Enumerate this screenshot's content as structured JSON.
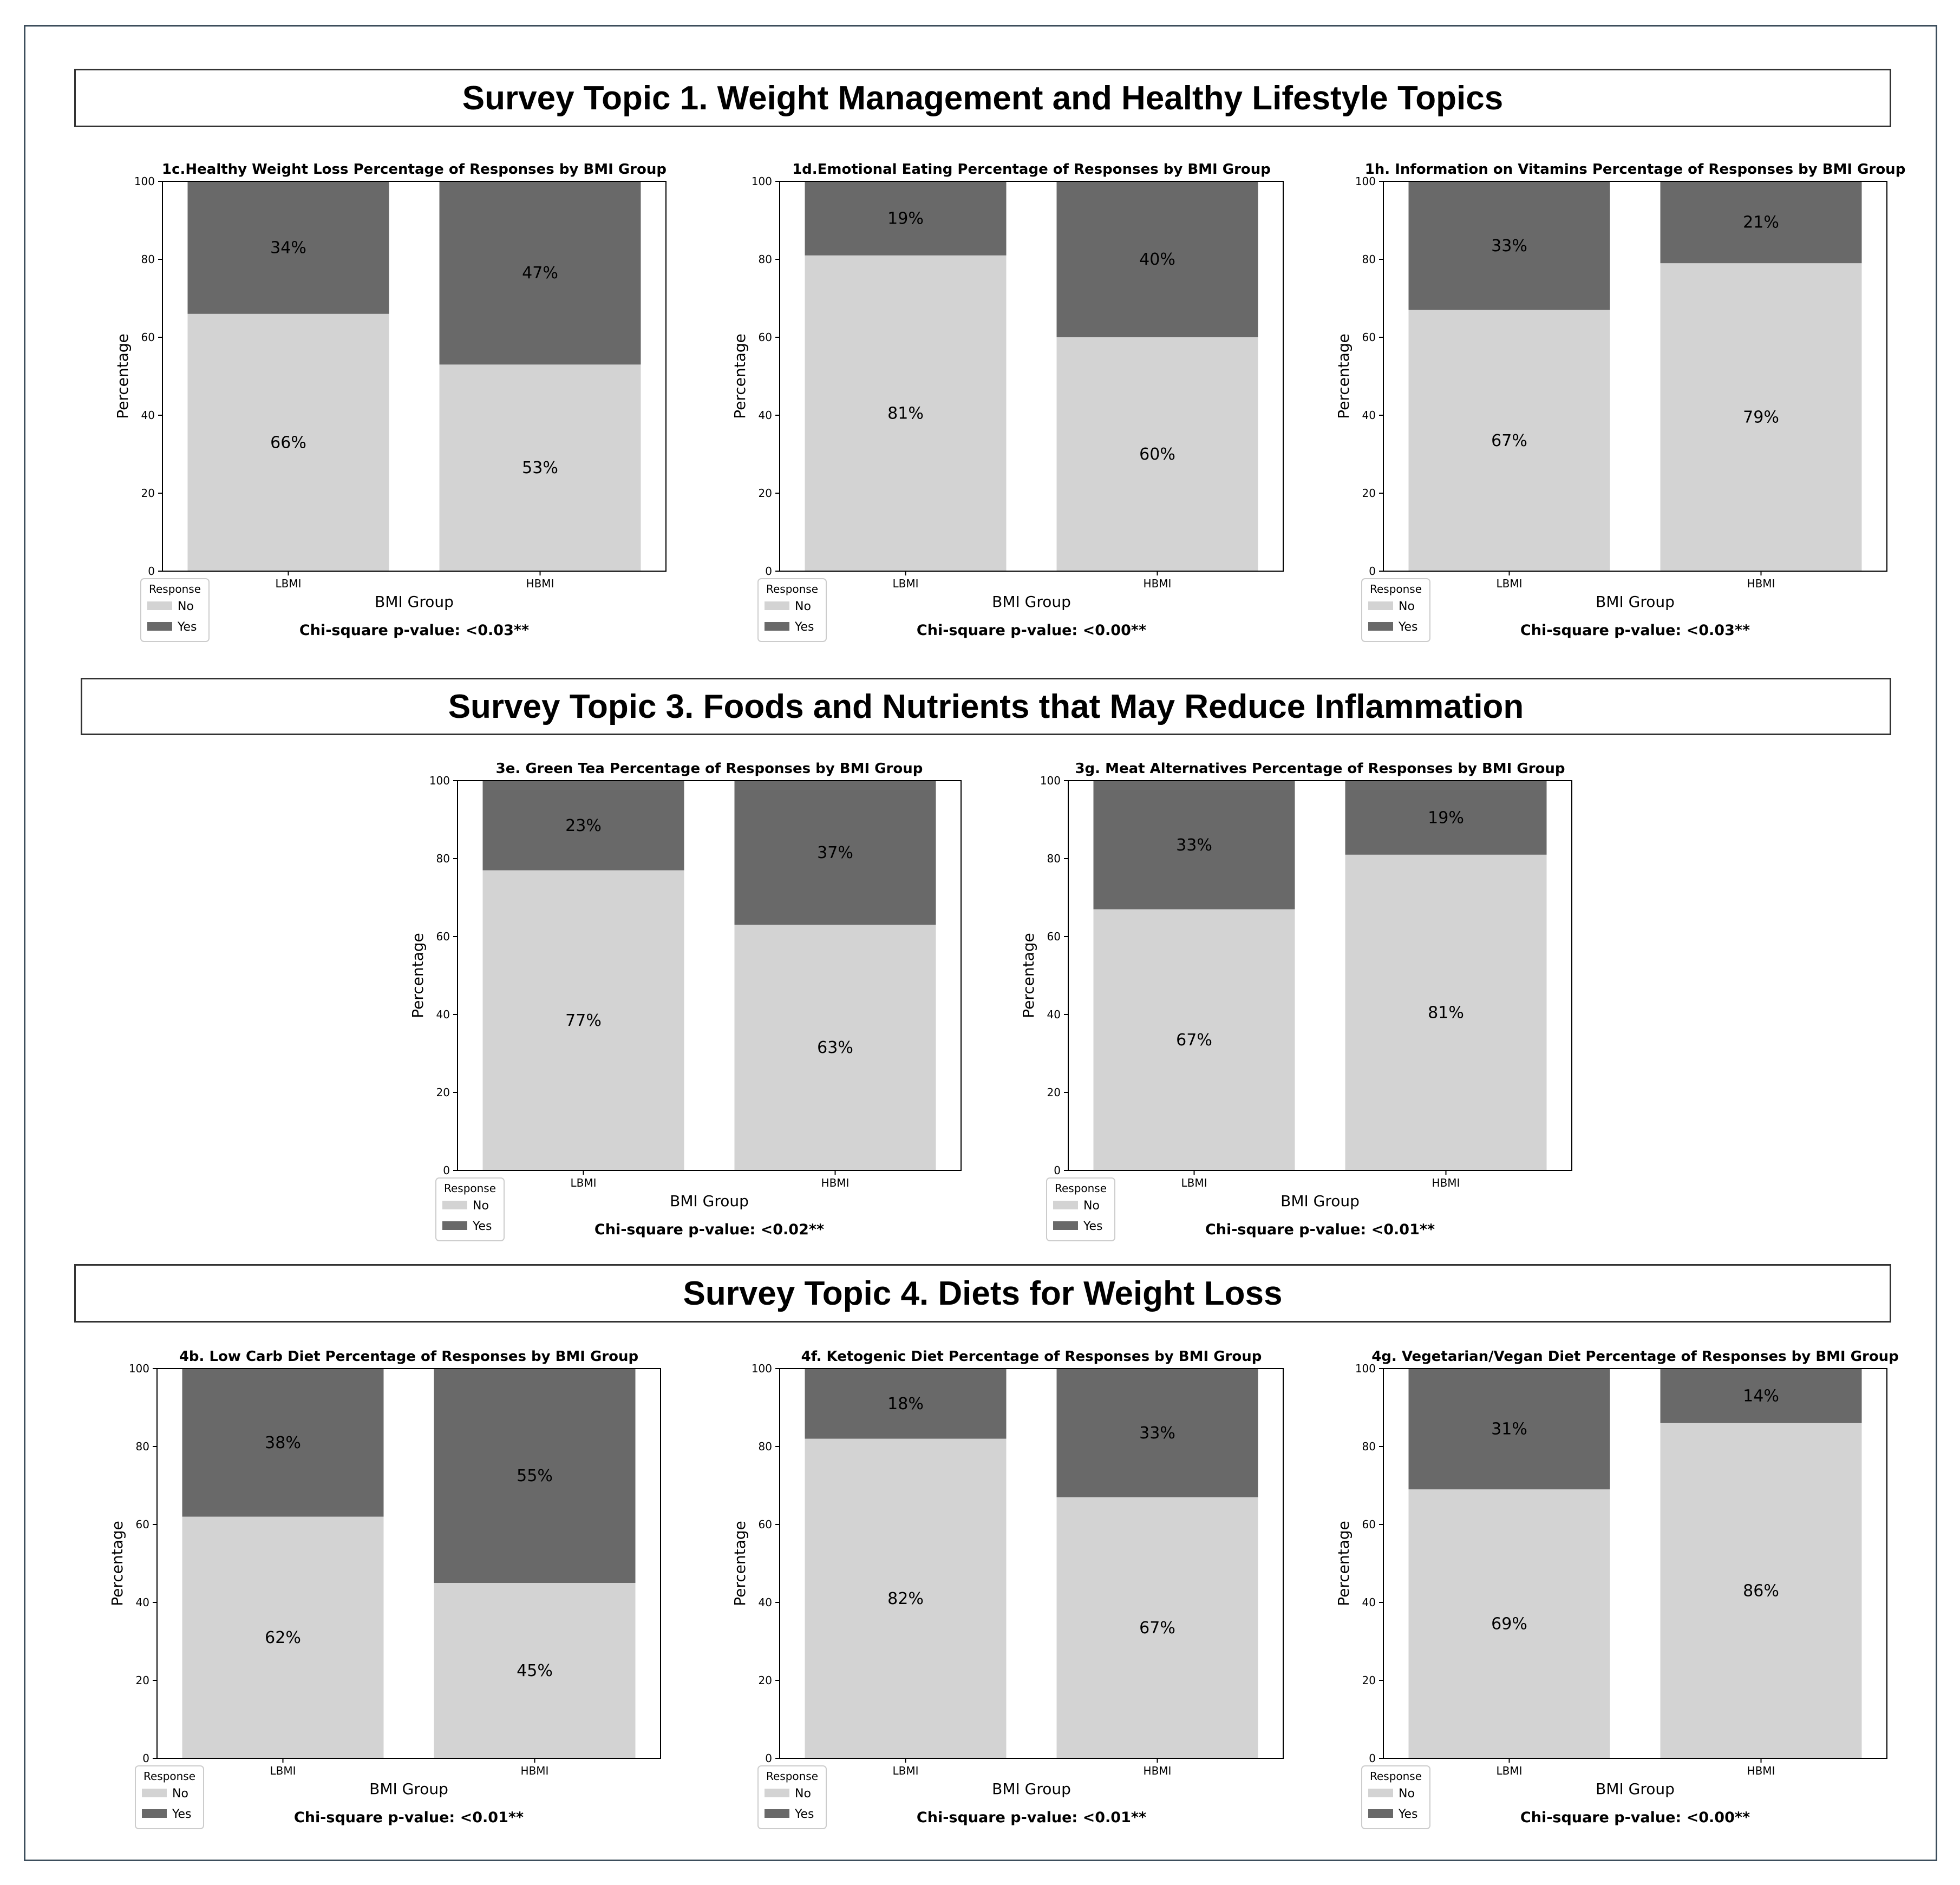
{
  "sections": [
    {
      "title": "Survey Topic 1. Weight Management and Healthy Lifestyle Topics"
    },
    {
      "title": "Survey Topic 3. Foods and Nutrients that May Reduce Inflammation"
    },
    {
      "title": "Survey Topic 4. Diets for Weight Loss"
    }
  ],
  "colors": {
    "no": "#d3d3d3",
    "yes": "#696969"
  },
  "chart_data": [
    {
      "type": "bar",
      "stacked": true,
      "title": "1c.Healthy Weight Loss Percentage of Responses by BMI Group",
      "categories": [
        "LBMI",
        "HBMI"
      ],
      "series": [
        {
          "name": "No",
          "values": [
            66,
            53
          ]
        },
        {
          "name": "Yes",
          "values": [
            34,
            47
          ]
        }
      ],
      "labels": [
        [
          "66%",
          "34%"
        ],
        [
          "53%",
          "47%"
        ]
      ],
      "xlabel": "BMI Group",
      "ylabel": "Percentage",
      "ylim": [
        0,
        100
      ],
      "yticks": [
        "0",
        "20",
        "40",
        "60",
        "80",
        "100"
      ],
      "legend": {
        "title": "Response",
        "items": [
          "No",
          "Yes"
        ],
        "position": "below-left"
      },
      "note": "Chi-square p-value: <0.03**"
    },
    {
      "type": "bar",
      "stacked": true,
      "title": "1d.Emotional Eating Percentage of Responses by BMI Group",
      "categories": [
        "LBMI",
        "HBMI"
      ],
      "series": [
        {
          "name": "No",
          "values": [
            81,
            60
          ]
        },
        {
          "name": "Yes",
          "values": [
            19,
            40
          ]
        }
      ],
      "labels": [
        [
          "81%",
          "19%"
        ],
        [
          "60%",
          "40%"
        ]
      ],
      "xlabel": "BMI Group",
      "ylabel": "Percentage",
      "ylim": [
        0,
        100
      ],
      "yticks": [
        "0",
        "20",
        "40",
        "60",
        "80",
        "100"
      ],
      "legend": {
        "title": "Response",
        "items": [
          "No",
          "Yes"
        ],
        "position": "below-left"
      },
      "note": "Chi-square p-value: <0.00**"
    },
    {
      "type": "bar",
      "stacked": true,
      "title": "1h. Information on Vitamins Percentage of Responses by BMI Group",
      "categories": [
        "LBMI",
        "HBMI"
      ],
      "series": [
        {
          "name": "No",
          "values": [
            67,
            79
          ]
        },
        {
          "name": "Yes",
          "values": [
            33,
            21
          ]
        }
      ],
      "labels": [
        [
          "67%",
          "33%"
        ],
        [
          "79%",
          "21%"
        ]
      ],
      "xlabel": "BMI Group",
      "ylabel": "Percentage",
      "ylim": [
        0,
        100
      ],
      "yticks": [
        "0",
        "20",
        "40",
        "60",
        "80",
        "100"
      ],
      "legend": {
        "title": "Response",
        "items": [
          "No",
          "Yes"
        ],
        "position": "below-left"
      },
      "note": "Chi-square p-value: <0.03**"
    },
    {
      "type": "bar",
      "stacked": true,
      "title": "3e. Green Tea Percentage of Responses by BMI Group",
      "categories": [
        "LBMI",
        "HBMI"
      ],
      "series": [
        {
          "name": "No",
          "values": [
            77,
            63
          ]
        },
        {
          "name": "Yes",
          "values": [
            23,
            37
          ]
        }
      ],
      "labels": [
        [
          "77%",
          "23%"
        ],
        [
          "63%",
          "37%"
        ]
      ],
      "xlabel": "BMI Group",
      "ylabel": "Percentage",
      "ylim": [
        0,
        100
      ],
      "yticks": [
        "0",
        "20",
        "40",
        "60",
        "80",
        "100"
      ],
      "legend": {
        "title": "Response",
        "items": [
          "No",
          "Yes"
        ],
        "position": "below-left"
      },
      "note": "Chi-square p-value: <0.02**"
    },
    {
      "type": "bar",
      "stacked": true,
      "title": "3g. Meat Alternatives Percentage of Responses by BMI Group",
      "categories": [
        "LBMI",
        "HBMI"
      ],
      "series": [
        {
          "name": "No",
          "values": [
            67,
            81
          ]
        },
        {
          "name": "Yes",
          "values": [
            33,
            19
          ]
        }
      ],
      "labels": [
        [
          "67%",
          "33%"
        ],
        [
          "81%",
          "19%"
        ]
      ],
      "xlabel": "BMI Group",
      "ylabel": "Percentage",
      "ylim": [
        0,
        100
      ],
      "yticks": [
        "0",
        "20",
        "40",
        "60",
        "80",
        "100"
      ],
      "legend": {
        "title": "Response",
        "items": [
          "No",
          "Yes"
        ],
        "position": "below-left"
      },
      "note": "Chi-square p-value: <0.01**"
    },
    {
      "type": "bar",
      "stacked": true,
      "title": "4b. Low Carb Diet Percentage of Responses by BMI Group",
      "categories": [
        "LBMI",
        "HBMI"
      ],
      "series": [
        {
          "name": "No",
          "values": [
            62,
            45
          ]
        },
        {
          "name": "Yes",
          "values": [
            38,
            55
          ]
        }
      ],
      "labels": [
        [
          "62%",
          "38%"
        ],
        [
          "45%",
          "55%"
        ]
      ],
      "xlabel": "BMI Group",
      "ylabel": "Percentage",
      "ylim": [
        0,
        100
      ],
      "yticks": [
        "0",
        "20",
        "40",
        "60",
        "80",
        "100"
      ],
      "legend": {
        "title": "Response",
        "items": [
          "No",
          "Yes"
        ],
        "position": "below-left"
      },
      "note": "Chi-square p-value: <0.01**"
    },
    {
      "type": "bar",
      "stacked": true,
      "title": "4f. Ketogenic Diet Percentage of Responses by BMI Group",
      "categories": [
        "LBMI",
        "HBMI"
      ],
      "series": [
        {
          "name": "No",
          "values": [
            82,
            67
          ]
        },
        {
          "name": "Yes",
          "values": [
            18,
            33
          ]
        }
      ],
      "labels": [
        [
          "82%",
          "18%"
        ],
        [
          "67%",
          "33%"
        ]
      ],
      "xlabel": "BMI Group",
      "ylabel": "Percentage",
      "ylim": [
        0,
        100
      ],
      "yticks": [
        "0",
        "20",
        "40",
        "60",
        "80",
        "100"
      ],
      "legend": {
        "title": "Response",
        "items": [
          "No",
          "Yes"
        ],
        "position": "below-left"
      },
      "note": "Chi-square p-value: <0.01**"
    },
    {
      "type": "bar",
      "stacked": true,
      "title": "4g. Vegetarian/Vegan Diet Percentage of Responses by BMI Group",
      "categories": [
        "LBMI",
        "HBMI"
      ],
      "series": [
        {
          "name": "No",
          "values": [
            69,
            86
          ]
        },
        {
          "name": "Yes",
          "values": [
            31,
            14
          ]
        }
      ],
      "labels": [
        [
          "69%",
          "31%"
        ],
        [
          "86%",
          "14%"
        ]
      ],
      "xlabel": "BMI Group",
      "ylabel": "Percentage",
      "ylim": [
        0,
        100
      ],
      "yticks": [
        "0",
        "20",
        "40",
        "60",
        "80",
        "100"
      ],
      "legend": {
        "title": "Response",
        "items": [
          "No",
          "Yes"
        ],
        "position": "below-left"
      },
      "note": "Chi-square p-value: <0.00**"
    }
  ]
}
